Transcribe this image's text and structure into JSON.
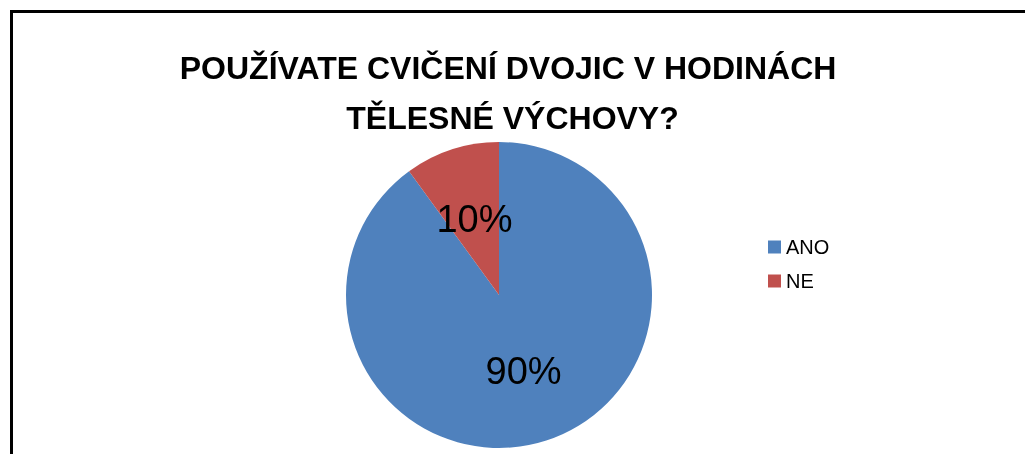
{
  "chart_data": {
    "type": "pie",
    "title": "POUŽÍVATE CVIČENÍ DVOJIC V HODINÁCH TĚLESNÉ VÝCHOVY?",
    "categories": [
      "ANO",
      "NE"
    ],
    "values": [
      90,
      10
    ],
    "colors": [
      "#4f81bd",
      "#c0504d"
    ],
    "value_labels": [
      "90%",
      "10%"
    ],
    "legend": "right"
  }
}
